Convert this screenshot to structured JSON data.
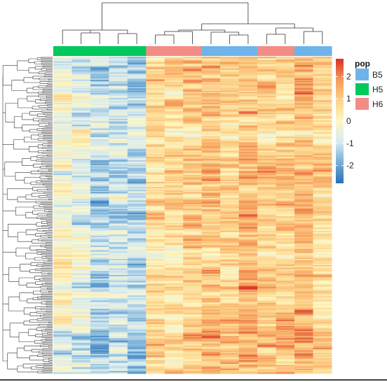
{
  "chart_data": {
    "type": "heatmap",
    "title": "",
    "xlabel": "",
    "ylabel": "",
    "columns": [
      {
        "group": "H5"
      },
      {
        "group": "H5"
      },
      {
        "group": "H5"
      },
      {
        "group": "H5"
      },
      {
        "group": "H5"
      },
      {
        "group": "H6"
      },
      {
        "group": "H6"
      },
      {
        "group": "H6"
      },
      {
        "group": "B5"
      },
      {
        "group": "B5"
      },
      {
        "group": "B5"
      },
      {
        "group": "H6"
      },
      {
        "group": "H6"
      },
      {
        "group": "B5"
      },
      {
        "group": "B5"
      }
    ],
    "column_means": [
      -0.2,
      -0.5,
      -1.2,
      -0.9,
      -1.3,
      0.7,
      0.6,
      0.9,
      1.1,
      0.8,
      1.3,
      0.9,
      1.0,
      1.2,
      0.7
    ],
    "n_rows": 260,
    "row_dendrogram": true,
    "column_dendrogram": true,
    "color_scale": {
      "min": -2.8,
      "max": 2.8,
      "ticks": [
        2,
        1,
        0,
        -1,
        -2
      ],
      "tick_labels": [
        "2",
        "1",
        "0",
        "-1",
        "-2"
      ],
      "colors": [
        "#2c6fb5",
        "#74aed6",
        "#d8ebf2",
        "#fef7c2",
        "#fdd289",
        "#f59a5a",
        "#d73027"
      ]
    },
    "annotation_legend": {
      "title": "pop",
      "items": [
        {
          "label": "B5",
          "color": "#6eb4ea"
        },
        {
          "label": "H5",
          "color": "#00c85c"
        },
        {
          "label": "H6",
          "color": "#f28c84"
        }
      ]
    }
  }
}
